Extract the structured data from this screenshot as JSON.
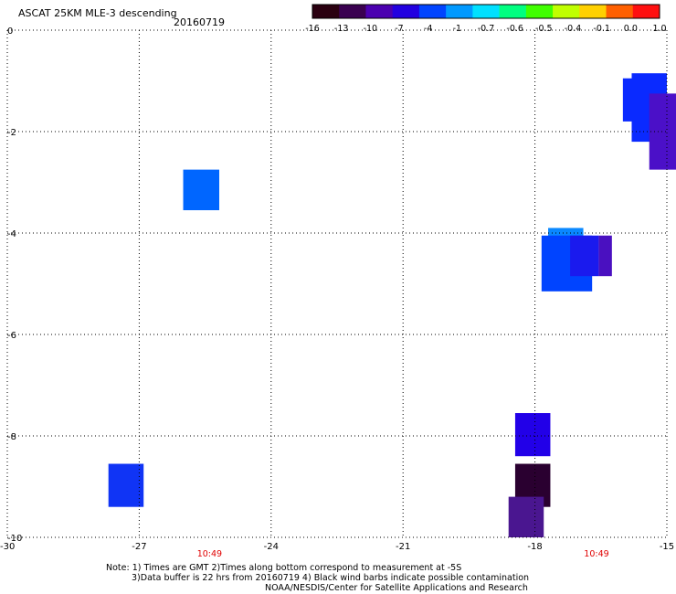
{
  "header": {
    "title": "ASCAT 25KM MLE-3 descending",
    "date": "20160719"
  },
  "colorbar": {
    "labels": [
      "-16",
      "-13",
      "-10",
      "-7",
      "-4",
      "-1",
      "-0.7",
      "-0.6",
      "-0.5",
      "-0.4",
      "-0.1",
      "0.0",
      "1.0"
    ],
    "colors": [
      "#2a0010",
      "#3a0050",
      "#4b00b0",
      "#2200e0",
      "#0044ff",
      "#0099ff",
      "#00e0ff",
      "#00ff80",
      "#40ff00",
      "#c0ff00",
      "#ffd000",
      "#ff6000",
      "#ff1010"
    ]
  },
  "chart_data": {
    "type": "heatmap",
    "xlim": [
      -30,
      -15
    ],
    "ylim": [
      -10,
      0
    ],
    "x_ticks": [
      "-30",
      "-27",
      "-24",
      "-21",
      "-18",
      "-15"
    ],
    "y_ticks": [
      "0",
      "-2",
      "-4",
      "-6",
      "-8",
      "-10"
    ],
    "grid": true,
    "time_labels": [
      {
        "text": "10:49",
        "x": -25.4
      },
      {
        "text": "10:49",
        "x": -16.6
      }
    ],
    "cells": [
      {
        "x0": -16.0,
        "x1": -15.35,
        "y0": -1.8,
        "y1": -0.95,
        "color": "#0a2aff"
      },
      {
        "x0": -15.8,
        "x1": -15.0,
        "y0": -2.2,
        "y1": -0.85,
        "color": "#0a2aff"
      },
      {
        "x0": -15.4,
        "x1": -14.6,
        "y0": -2.75,
        "y1": -1.25,
        "color": "#4b10c8"
      },
      {
        "x0": -26.0,
        "x1": -25.18,
        "y0": -3.55,
        "y1": -2.75,
        "color": "#0066ff"
      },
      {
        "x0": -17.7,
        "x1": -16.9,
        "y0": -4.35,
        "y1": -3.9,
        "color": "#0a88ff"
      },
      {
        "x0": -17.85,
        "x1": -16.7,
        "y0": -5.15,
        "y1": -4.05,
        "color": "#0044ff"
      },
      {
        "x0": -17.2,
        "x1": -16.55,
        "y0": -4.85,
        "y1": -4.05,
        "color": "#1a1aee"
      },
      {
        "x0": -16.55,
        "x1": -16.25,
        "y0": -4.85,
        "y1": -4.05,
        "color": "#4a10c0"
      },
      {
        "x0": -18.45,
        "x1": -17.65,
        "y0": -8.4,
        "y1": -7.55,
        "color": "#2200e8"
      },
      {
        "x0": -27.7,
        "x1": -26.9,
        "y0": -9.4,
        "y1": -8.55,
        "color": "#1034f5"
      },
      {
        "x0": -18.45,
        "x1": -17.65,
        "y0": -9.4,
        "y1": -8.55,
        "color": "#2a0030"
      },
      {
        "x0": -18.6,
        "x1": -17.8,
        "y0": -10.0,
        "y1": -9.2,
        "color": "#4a1690"
      }
    ]
  },
  "notes": {
    "line1": "Note: 1) Times are GMT 2)Times along bottom correspond to measurement at -5S",
    "line2": "3)Data buffer is 22 hrs from 20160719 4) Black wind barbs indicate possible contamination",
    "line3": "NOAA/NESDIS/Center for Satellite Applications and Research"
  }
}
